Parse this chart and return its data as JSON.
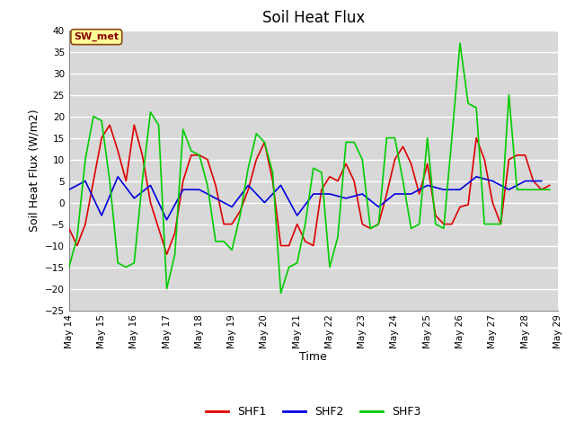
{
  "title": "Soil Heat Flux",
  "xlabel": "Time",
  "ylabel": "Soil Heat Flux (W/m2)",
  "ylim": [
    -25,
    40
  ],
  "yticks": [
    -25,
    -20,
    -15,
    -10,
    -5,
    0,
    5,
    10,
    15,
    20,
    25,
    30,
    35,
    40
  ],
  "x_tick_days": [
    14,
    15,
    16,
    17,
    18,
    19,
    20,
    21,
    22,
    23,
    24,
    25,
    26,
    27,
    28,
    29
  ],
  "x_tick_labels": [
    "May 14",
    "May 15",
    "May 16",
    "May 17",
    "May 18",
    "May 19",
    "May 20",
    "May 21",
    "May 22",
    "May 23",
    "May 24",
    "May 25",
    "May 26",
    "May 27",
    "May 28",
    "May 29"
  ],
  "color_SHF1": "#dd0000",
  "color_SHF2": "#0000dd",
  "color_SHF3": "#00cc00",
  "annotation_text": "SW_met",
  "plot_bg_color": "#d8d8d8",
  "fig_bg_color": "#ffffff",
  "grid_color": "#ffffff",
  "title_fontsize": 12,
  "axis_label_fontsize": 9,
  "tick_fontsize": 7.5,
  "SHF1_x": [
    14.0,
    14.25,
    14.5,
    14.75,
    15.0,
    15.25,
    15.5,
    15.75,
    16.0,
    16.25,
    16.5,
    16.75,
    17.0,
    17.25,
    17.5,
    17.75,
    18.0,
    18.25,
    18.5,
    18.75,
    19.0,
    19.25,
    19.5,
    19.75,
    20.0,
    20.25,
    20.5,
    20.75,
    21.0,
    21.25,
    21.5,
    21.75,
    22.0,
    22.25,
    22.5,
    22.75,
    23.0,
    23.25,
    23.5,
    23.75,
    24.0,
    24.25,
    24.5,
    24.75,
    25.0,
    25.25,
    25.5,
    25.75,
    26.0,
    26.25,
    26.5,
    26.75,
    27.0,
    27.25,
    27.5,
    27.75,
    28.0,
    28.25,
    28.5,
    28.75
  ],
  "SHF1_y": [
    -6,
    -10,
    -5,
    5,
    15,
    18,
    12,
    5,
    18,
    11,
    0,
    -6,
    -12,
    -7,
    5,
    11,
    11,
    10,
    4,
    -5,
    -5,
    -2,
    3,
    10,
    14,
    5,
    -10,
    -10,
    -5,
    -9,
    -10,
    3,
    6,
    5,
    9,
    5,
    -5,
    -6,
    -5,
    2,
    10,
    13,
    9,
    2,
    9,
    -3,
    -5,
    -5,
    -1,
    -0.5,
    15,
    10,
    0,
    -5,
    10,
    11,
    11,
    5,
    3,
    4
  ],
  "SHF2_x": [
    14.0,
    14.5,
    15.0,
    15.5,
    16.0,
    16.5,
    17.0,
    17.5,
    18.0,
    18.5,
    19.0,
    19.5,
    20.0,
    20.5,
    21.0,
    21.5,
    22.0,
    22.5,
    23.0,
    23.5,
    24.0,
    24.5,
    25.0,
    25.5,
    26.0,
    26.5,
    27.0,
    27.5,
    28.0,
    28.5
  ],
  "SHF2_y": [
    3,
    5,
    -3,
    6,
    1,
    4,
    -4,
    3,
    3,
    1,
    -1,
    4,
    0,
    4,
    -3,
    2,
    2,
    1,
    2,
    -1,
    2,
    2,
    4,
    3,
    3,
    6,
    5,
    3,
    5,
    5
  ],
  "SHF3_x": [
    14.0,
    14.25,
    14.5,
    14.75,
    15.0,
    15.25,
    15.5,
    15.75,
    16.0,
    16.25,
    16.5,
    16.75,
    17.0,
    17.25,
    17.5,
    17.75,
    18.0,
    18.25,
    18.5,
    18.75,
    19.0,
    19.25,
    19.5,
    19.75,
    20.0,
    20.25,
    20.5,
    20.75,
    21.0,
    21.25,
    21.5,
    21.75,
    22.0,
    22.25,
    22.5,
    22.75,
    23.0,
    23.25,
    23.5,
    23.75,
    24.0,
    24.25,
    24.5,
    24.75,
    25.0,
    25.25,
    25.5,
    25.75,
    26.0,
    26.25,
    26.5,
    26.75,
    27.0,
    27.25,
    27.5,
    27.75,
    28.0,
    28.25,
    28.5,
    28.75
  ],
  "SHF3_y": [
    -15,
    -8,
    10,
    20,
    19,
    5,
    -14,
    -15,
    -14,
    5,
    21,
    18,
    -20,
    -12,
    17,
    12,
    11,
    4,
    -9,
    -9,
    -11,
    -3,
    8,
    16,
    14,
    7,
    -21,
    -15,
    -14,
    -5,
    8,
    7,
    -15,
    -8,
    14,
    14,
    10,
    -6,
    -5,
    15,
    15,
    5,
    -6,
    -5,
    15,
    -5,
    -6,
    15,
    37,
    23,
    22,
    -5,
    -5,
    -5,
    25,
    3,
    3,
    3,
    3,
    3
  ]
}
